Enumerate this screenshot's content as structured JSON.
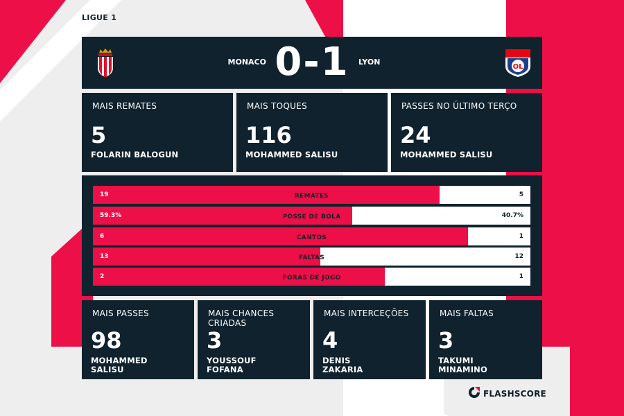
{
  "league": "LIGUE 1",
  "match": {
    "home_team": "MONACO",
    "away_team": "LYON",
    "score": "0-1",
    "home_crest_icon": "as-monaco-crest-icon",
    "away_crest_icon": "olympique-lyonnais-crest-icon"
  },
  "top_cards": [
    {
      "label": "MAIS REMATES",
      "value": "5",
      "player": "FOLARIN BALOGUN"
    },
    {
      "label": "MAIS TOQUES",
      "value": "116",
      "player": "MOHAMMED SALISU"
    },
    {
      "label": "PASSES NO ÚLTIMO TERÇO",
      "value": "24",
      "player": "MOHAMMED SALISU"
    }
  ],
  "stats": [
    {
      "label": "REMATES",
      "home": "19",
      "away": "5",
      "home_share": 0.792
    },
    {
      "label": "POSSE DE BOLA",
      "home": "59.3%",
      "away": "40.7%",
      "home_share": 0.593
    },
    {
      "label": "CANTOS",
      "home": "6",
      "away": "1",
      "home_share": 0.857
    },
    {
      "label": "FALTAS",
      "home": "13",
      "away": "12",
      "home_share": 0.52
    },
    {
      "label": "FORAS DE JOGO",
      "home": "2",
      "away": "1",
      "home_share": 0.667
    }
  ],
  "bottom_cards": [
    {
      "label": "MAIS PASSES",
      "value": "98",
      "player_line1": "MOHAMMED",
      "player_line2": "SALISU"
    },
    {
      "label_line1": "MAIS CHANCES",
      "label_line2": "CRIADAS",
      "value": "3",
      "player_line1": "YOUSSOUF",
      "player_line2": "FOFANA"
    },
    {
      "label": "MAIS INTERCEÇÕES",
      "value": "4",
      "player_line1": "DENIS",
      "player_line2": "ZAKARIA"
    },
    {
      "label": "MAIS FALTAS",
      "value": "3",
      "player_line1": "TAKUMI",
      "player_line2": "MINAMINO"
    }
  ],
  "brand": {
    "name": "FLASHSCORE",
    "icon": "flashscore-logo-icon"
  },
  "colors": {
    "accent": "#ec0f48",
    "panel": "#0f222d",
    "background": "#eeeeee",
    "text_dark": "#10202b"
  }
}
